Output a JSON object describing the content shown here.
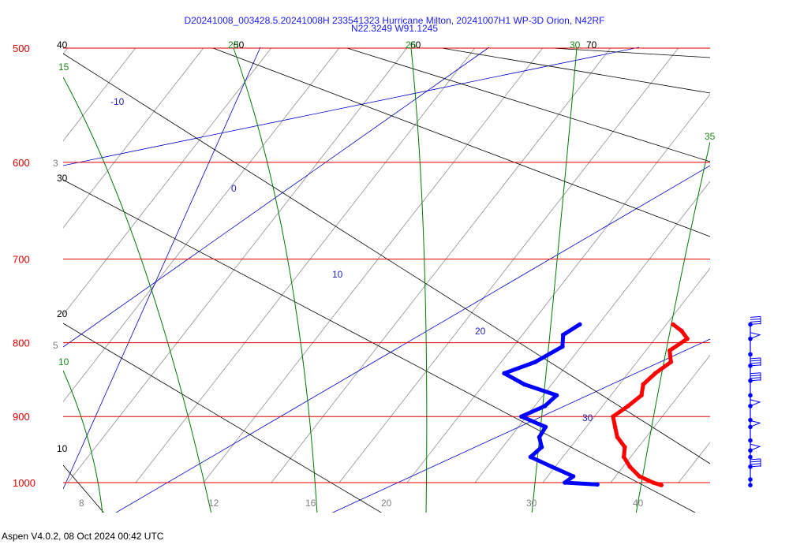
{
  "header": {
    "title_line1": "D20241008_003428.5.20241008H 233541323 Hurricane Milton, 20241007H1 WP-3D Orion, N42RF",
    "title_line2": "N22.3249 W91.1245"
  },
  "footer": {
    "text": "Aspen V4.0.2, 08 Oct 2024  00:42 UTC"
  },
  "colors": {
    "isobar": "#e00000",
    "temperature_profile": "#ff0000",
    "dewpoint_profile": "#0000ff",
    "mixing_ratio": "#0000c8",
    "moist_adiabat": "#007a00",
    "dry_adiabat": "#000000",
    "isotherm": "#909090",
    "wind_barbs": "#0000ff"
  },
  "chart_data": {
    "type": "skew-T log-p",
    "title": "D20241008_003428.5.20241008H 233541323 Hurricane Milton, 20241007H1 WP-3D Orion, N42RF",
    "subtitle": "N22.3249 W91.1245",
    "pressure_levels_hPa": [
      500,
      600,
      700,
      800,
      900,
      1000
    ],
    "pressure_labels": [
      "500",
      "600",
      "700",
      "800",
      "900",
      "1000"
    ],
    "ylim_hPa": [
      1000,
      500
    ],
    "bottom_temperature_ticks": [
      {
        "label": "8",
        "value": 8
      },
      {
        "label": "12",
        "value": 12
      },
      {
        "label": "16",
        "value": 16
      },
      {
        "label": "20",
        "value": 20
      },
      {
        "label": "30",
        "value": 30
      },
      {
        "label": "40",
        "value": 40
      }
    ],
    "left_isotherm_labels": [
      "3",
      "5"
    ],
    "dry_adiabat_labels": [
      "40",
      "50",
      "60",
      "70",
      "30",
      "20",
      "10"
    ],
    "mixing_ratio_labels": [
      "-10",
      "0",
      "10",
      "20",
      "30"
    ],
    "moist_adiabat_labels": [
      "15",
      "20",
      "25",
      "30",
      "35",
      "10"
    ],
    "temperature_profile_C": [
      {
        "p": 777,
        "t": 12.4
      },
      {
        "p": 785,
        "t": 13.2
      },
      {
        "p": 795,
        "t": 13.9
      },
      {
        "p": 810,
        "t": 13.4
      },
      {
        "p": 825,
        "t": 14.0
      },
      {
        "p": 840,
        "t": 13.6
      },
      {
        "p": 855,
        "t": 13.4
      },
      {
        "p": 870,
        "t": 13.8
      },
      {
        "p": 885,
        "t": 13.5
      },
      {
        "p": 900,
        "t": 13.1
      },
      {
        "p": 915,
        "t": 13.7
      },
      {
        "p": 930,
        "t": 14.3
      },
      {
        "p": 945,
        "t": 15.2
      },
      {
        "p": 960,
        "t": 15.6
      },
      {
        "p": 975,
        "t": 16.4
      },
      {
        "p": 990,
        "t": 17.4
      },
      {
        "p": 1000,
        "t": 18.5
      },
      {
        "p": 1004,
        "t": 19.1
      }
    ],
    "dewpoint_profile_C": [
      {
        "p": 777,
        "t": 6.9
      },
      {
        "p": 790,
        "t": 6.4
      },
      {
        "p": 805,
        "t": 6.9
      },
      {
        "p": 825,
        "t": 6.0
      },
      {
        "p": 840,
        "t": 4.7
      },
      {
        "p": 855,
        "t": 6.4
      },
      {
        "p": 870,
        "t": 8.8
      },
      {
        "p": 885,
        "t": 8.6
      },
      {
        "p": 900,
        "t": 7.7
      },
      {
        "p": 915,
        "t": 9.6
      },
      {
        "p": 930,
        "t": 9.7
      },
      {
        "p": 945,
        "t": 10.3
      },
      {
        "p": 960,
        "t": 10.1
      },
      {
        "p": 975,
        "t": 11.8
      },
      {
        "p": 990,
        "t": 13.5
      },
      {
        "p": 1000,
        "t": 13.3
      },
      {
        "p": 1003,
        "t": 15.3
      }
    ],
    "wind_barbs": [
      {
        "p": 777,
        "type": "flags"
      },
      {
        "p": 795,
        "type": "pennant"
      },
      {
        "p": 815,
        "type": "line"
      },
      {
        "p": 830,
        "type": "flags"
      },
      {
        "p": 850,
        "type": "flags"
      },
      {
        "p": 870,
        "type": "line"
      },
      {
        "p": 885,
        "type": "pennant"
      },
      {
        "p": 905,
        "type": "line"
      },
      {
        "p": 915,
        "type": "pennant"
      },
      {
        "p": 935,
        "type": "line"
      },
      {
        "p": 950,
        "type": "pennant"
      },
      {
        "p": 960,
        "type": "line"
      },
      {
        "p": 975,
        "type": "flags"
      },
      {
        "p": 995,
        "type": "line"
      },
      {
        "p": 1004,
        "type": "line"
      }
    ],
    "grid": true
  }
}
